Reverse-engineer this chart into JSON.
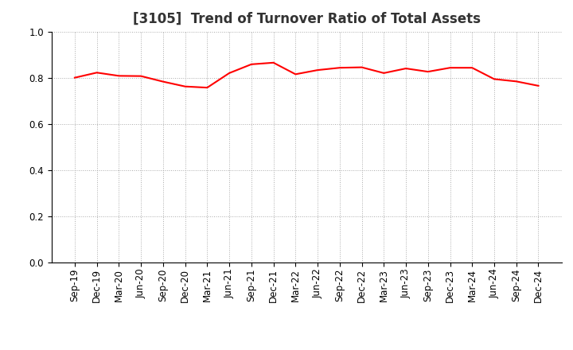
{
  "title": "[3105]  Trend of Turnover Ratio of Total Assets",
  "xlabels": [
    "Sep-19",
    "Dec-19",
    "Mar-20",
    "Jun-20",
    "Sep-20",
    "Dec-20",
    "Mar-21",
    "Jun-21",
    "Sep-21",
    "Dec-21",
    "Mar-22",
    "Jun-22",
    "Sep-22",
    "Dec-22",
    "Mar-23",
    "Jun-23",
    "Sep-23",
    "Dec-23",
    "Mar-24",
    "Jun-24",
    "Sep-24",
    "Dec-24"
  ],
  "yvalues": [
    0.8,
    0.822,
    0.808,
    0.807,
    0.783,
    0.762,
    0.757,
    0.82,
    0.858,
    0.865,
    0.815,
    0.833,
    0.843,
    0.845,
    0.82,
    0.84,
    0.826,
    0.843,
    0.843,
    0.794,
    0.784,
    0.765
  ],
  "line_color": "#FF0000",
  "line_width": 1.5,
  "bg_color": "#FFFFFF",
  "grid_color": "#AAAAAA",
  "ylim": [
    0.0,
    1.0
  ],
  "yticks": [
    0.0,
    0.2,
    0.4,
    0.6,
    0.8,
    1.0
  ],
  "title_fontsize": 12,
  "tick_fontsize": 8.5
}
